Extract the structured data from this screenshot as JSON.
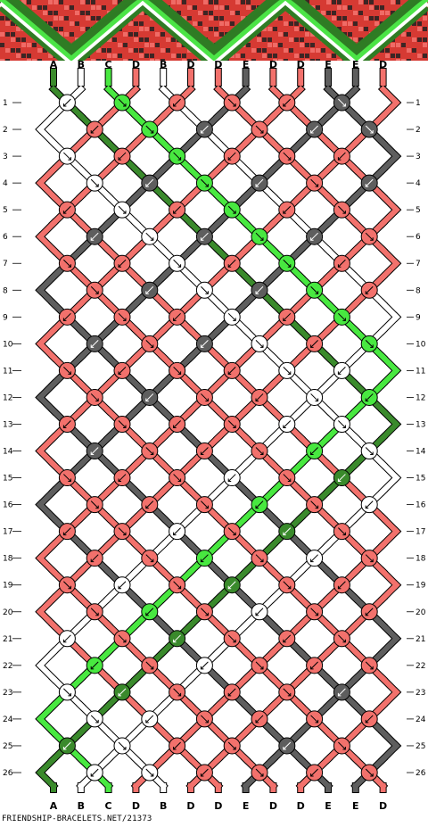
{
  "colors": {
    "A": "#3a8a2c",
    "B": "#ffffff",
    "C": "#48e840",
    "D": "#f2716c",
    "E": "#5e5e5e"
  },
  "preview_colors": {
    "dark_green": "#2f7c24",
    "light_green": "#4be446",
    "white": "#ffffff",
    "salmon": "#f2716c",
    "red": "#d63a33",
    "dark": "#222222"
  },
  "top_labels": [
    "A",
    "B",
    "C",
    "D",
    "B",
    "D",
    "D",
    "E",
    "D",
    "D",
    "E",
    "E",
    "D"
  ],
  "bottom_labels": [
    "A",
    "B",
    "C",
    "D",
    "B",
    "D",
    "D",
    "E",
    "D",
    "D",
    "E",
    "E",
    "D"
  ],
  "row_numbers": [
    "1",
    "2",
    "3",
    "4",
    "5",
    "6",
    "7",
    "8",
    "9",
    "10",
    "11",
    "12",
    "13",
    "14",
    "15",
    "16",
    "17",
    "18",
    "19",
    "20",
    "21",
    "22",
    "23",
    "24",
    "25",
    "26"
  ],
  "footer": "FRIENDSHIP-BRACELETS.NET/21373"
}
